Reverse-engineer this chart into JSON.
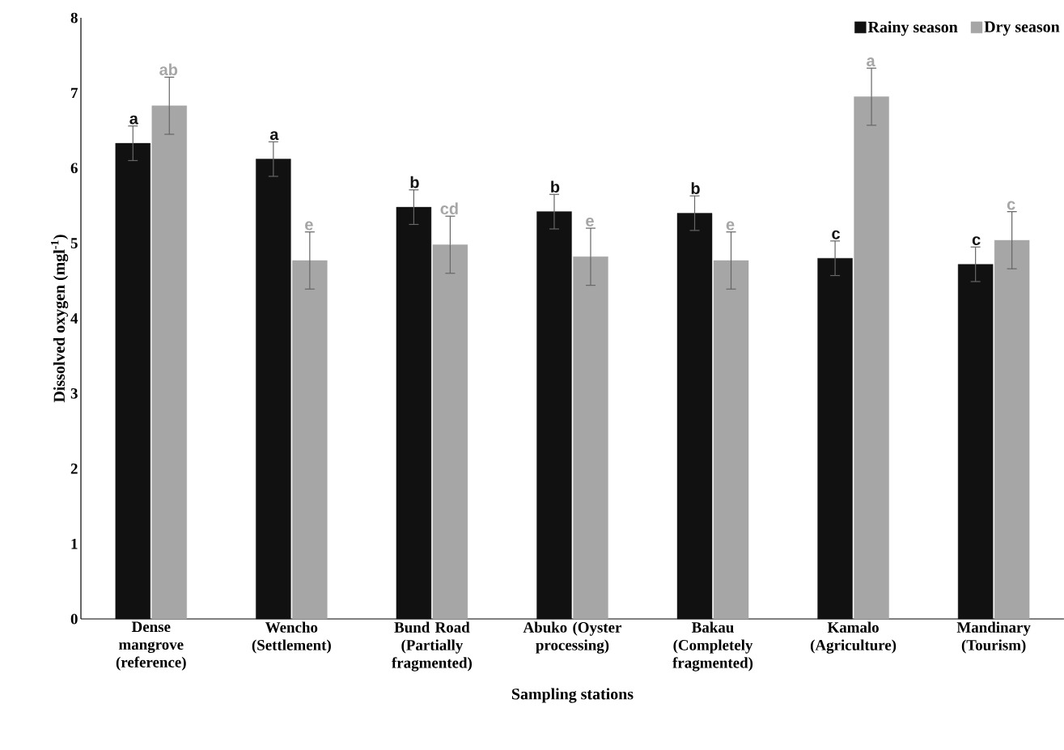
{
  "chart_data": {
    "type": "bar",
    "xlabel": "Sampling stations",
    "ylabel": "Dissolved oxygen (mgl$^{-1}$)",
    "categories": [
      "Dense mangrove (reference)",
      "Wencho (Settlement)",
      "Bund Road (Partially fragmented)",
      "Abuko (Oyster processing)",
      "Bakau (Completely fragmented)",
      "Kamalo (Agriculture)",
      "Mandinary (Tourism)"
    ],
    "series": [
      {
        "name": "Rainy season",
        "color": "#111111",
        "values": [
          6.33,
          6.12,
          5.48,
          5.42,
          5.4,
          4.8,
          4.72
        ],
        "errors": [
          0.23,
          0.23,
          0.23,
          0.23,
          0.23,
          0.23,
          0.23
        ]
      },
      {
        "name": "Dry season",
        "color": "#a6a6a6",
        "values": [
          6.83,
          4.77,
          4.98,
          4.82,
          4.77,
          6.95,
          5.04
        ],
        "errors": [
          0.38,
          0.38,
          0.38,
          0.38,
          0.38,
          0.38,
          0.38
        ]
      }
    ],
    "ylim": [
      0,
      8
    ],
    "yticks": [
      0,
      1,
      2,
      3,
      4,
      5,
      6,
      7,
      8
    ],
    "grid": false,
    "legend": "top right",
    "annotations": [
      "a",
      "ab",
      "a",
      "e",
      "b",
      "cd",
      "b",
      "e",
      "b",
      "e",
      "c",
      "a",
      "c",
      "c"
    ]
  }
}
